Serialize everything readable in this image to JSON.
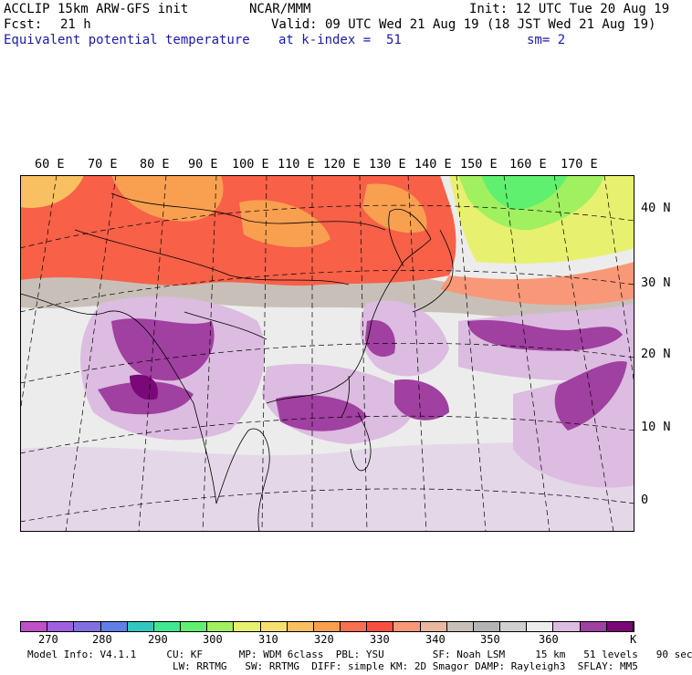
{
  "header": {
    "model": "ACCLIP 15km ARW-GFS init",
    "org": "NCAR/MMM",
    "init": "Init: 12 UTC Tue 20 Aug 19",
    "fcst_label": "Fcst:",
    "fcst_value": "21 h",
    "valid": "Valid: 09 UTC Wed 21 Aug 19 (18 JST Wed 21 Aug 19)",
    "field": "Equivalent potential temperature",
    "level": "at k-index =  51",
    "smoothing": "sm= 2"
  },
  "map": {
    "lon_labels": [
      "60 E",
      "70 E",
      "80 E",
      "90 E",
      "100 E",
      "110 E",
      "120 E",
      "130 E",
      "140 E",
      "150 E",
      "160 E",
      "170 E"
    ],
    "lat_labels": [
      "40 N",
      "30 N",
      "20 N",
      "10 N",
      "0"
    ]
  },
  "colorbar": {
    "unit": "K",
    "tick_labels": [
      "270",
      "280",
      "290",
      "300",
      "310",
      "320",
      "330",
      "340",
      "350",
      "360"
    ],
    "colors": [
      "#c050c8",
      "#a060e0",
      "#8070e0",
      "#6080e8",
      "#30c8c0",
      "#40e890",
      "#60f070",
      "#a0f060",
      "#e8f070",
      "#f8e070",
      "#f8c060",
      "#f8a050",
      "#f87050",
      "#f85040",
      "#f89878",
      "#e8b8a0",
      "#c8c0b8",
      "#b4b4b4",
      "#d0d0d0",
      "#ececec",
      "#dcbce0",
      "#a040a0",
      "#7a0878"
    ]
  },
  "model_info": {
    "line1": "Model Info: V4.1.1     CU: KF      MP: WDM 6class  PBL: YSU        SF: Noah LSM     15 km   51 levels   90 sec",
    "line2": "                        LW: RRTMG   SW: RRTMG  DIFF: simple KM: 2D Smagor DAMP: Rayleigh3  SFLAY: MM5"
  }
}
